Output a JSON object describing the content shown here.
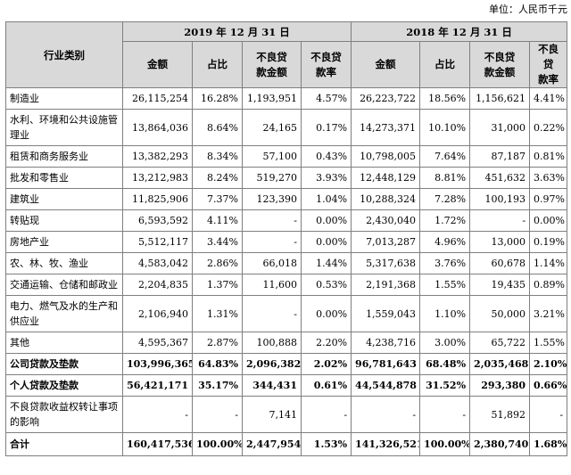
{
  "unit_label": "单位：人民币千元",
  "header": {
    "category": "行业类别",
    "period_2019": "2019 年 12 月 31 日",
    "period_2018": "2018 年 12 月 31 日",
    "cols_2019": [
      "金额",
      "占比",
      "不良贷款金额",
      "不良贷款率"
    ],
    "cols_2018": [
      "金额",
      "占比",
      "不良贷款金额",
      "不良贷款率"
    ]
  },
  "rows": [
    {
      "name": "制造业",
      "bold": false,
      "h": 24,
      "v": [
        "26,115,254",
        "16.28%",
        "1,193,951",
        "4.57%",
        "26,223,722",
        "18.56%",
        "1,156,621",
        "4.41%"
      ]
    },
    {
      "name": "水利、环境和公共设施管理业",
      "bold": false,
      "h": 41,
      "v": [
        "13,864,036",
        "8.64%",
        "24,165",
        "0.17%",
        "14,273,371",
        "10.10%",
        "31,000",
        "0.22%"
      ]
    },
    {
      "name": "租赁和商务服务业",
      "bold": false,
      "h": 24,
      "v": [
        "13,382,293",
        "8.34%",
        "57,100",
        "0.43%",
        "10,798,005",
        "7.64%",
        "87,187",
        "0.81%"
      ]
    },
    {
      "name": "批发和零售业",
      "bold": false,
      "h": 24,
      "v": [
        "13,212,983",
        "8.24%",
        "519,270",
        "3.93%",
        "12,448,129",
        "8.81%",
        "451,632",
        "3.63%"
      ]
    },
    {
      "name": "建筑业",
      "bold": false,
      "h": 24,
      "v": [
        "11,825,906",
        "7.37%",
        "123,390",
        "1.04%",
        "10,288,324",
        "7.28%",
        "100,193",
        "0.97%"
      ]
    },
    {
      "name": "转贴现",
      "bold": false,
      "h": 24,
      "v": [
        "6,593,592",
        "4.11%",
        "-",
        "0.00%",
        "2,430,040",
        "1.72%",
        "-",
        "0.00%"
      ]
    },
    {
      "name": "房地产业",
      "bold": false,
      "h": 24,
      "v": [
        "5,512,117",
        "3.44%",
        "-",
        "0.00%",
        "7,013,287",
        "4.96%",
        "13,000",
        "0.19%"
      ]
    },
    {
      "name": "农、林、牧、渔业",
      "bold": false,
      "h": 24,
      "v": [
        "4,583,042",
        "2.86%",
        "66,018",
        "1.44%",
        "5,317,638",
        "3.76%",
        "60,678",
        "1.14%"
      ]
    },
    {
      "name": "交通运输、仓储和邮政业",
      "bold": false,
      "h": 24,
      "v": [
        "2,204,835",
        "1.37%",
        "11,600",
        "0.53%",
        "2,191,368",
        "1.55%",
        "19,435",
        "0.89%"
      ]
    },
    {
      "name": "电力、燃气及水的生产和供应业",
      "bold": false,
      "h": 41,
      "v": [
        "2,106,940",
        "1.31%",
        "-",
        "0.00%",
        "1,559,043",
        "1.10%",
        "50,000",
        "3.21%"
      ]
    },
    {
      "name": "其他",
      "bold": false,
      "h": 24,
      "v": [
        "4,595,367",
        "2.87%",
        "100,888",
        "2.20%",
        "4,238,716",
        "3.00%",
        "65,722",
        "1.55%"
      ]
    },
    {
      "name": "公司贷款及垫款",
      "bold": true,
      "h": 24,
      "v": [
        "103,996,365",
        "64.83%",
        "2,096,382",
        "2.02%",
        "96,781,643",
        "68.48%",
        "2,035,468",
        "2.10%"
      ]
    },
    {
      "name": "个人贷款及垫款",
      "bold": true,
      "h": 24,
      "v": [
        "56,421,171",
        "35.17%",
        "344,431",
        "0.61%",
        "44,544,878",
        "31.52%",
        "293,380",
        "0.66%"
      ]
    },
    {
      "name": "不良贷款收益权转让事项的影响",
      "bold": false,
      "h": 41,
      "v": [
        "-",
        "-",
        "7,141",
        "-",
        "-",
        "-",
        "51,892",
        "-"
      ]
    },
    {
      "name": "合计",
      "bold": true,
      "h": 26,
      "v": [
        "160,417,536",
        "100.00%",
        "2,447,954",
        "1.53%",
        "141,326,521",
        "100.00%",
        "2,380,740",
        "1.68%"
      ]
    }
  ]
}
